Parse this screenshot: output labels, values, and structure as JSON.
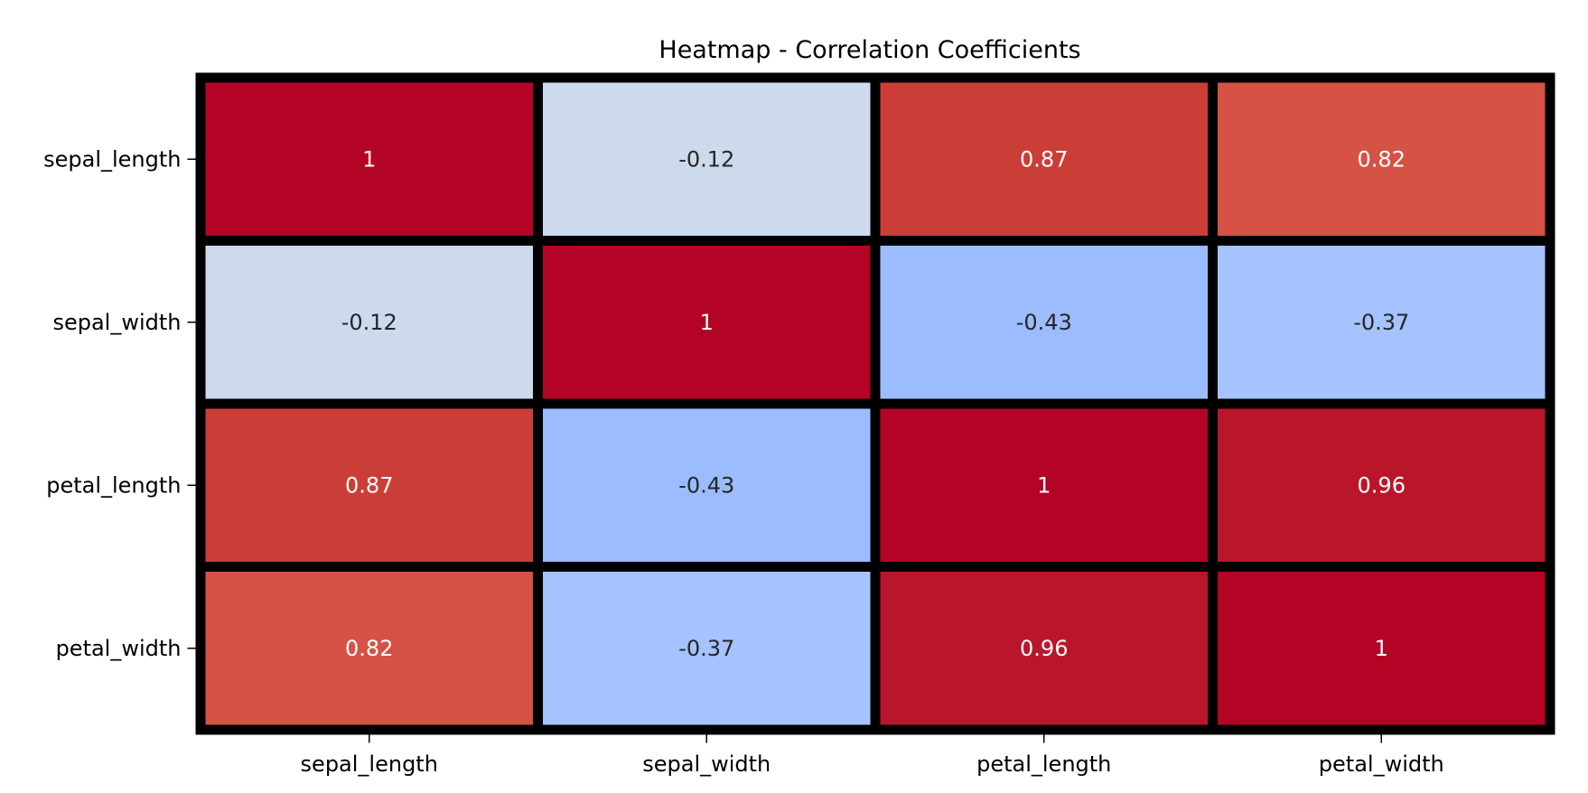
{
  "chart_data": {
    "type": "heatmap",
    "title": "Heatmap - Correlation Coefficients",
    "xlabel": "",
    "ylabel": "",
    "x_labels": [
      "sepal_length",
      "sepal_width",
      "petal_length",
      "petal_width"
    ],
    "y_labels": [
      "sepal_length",
      "sepal_width",
      "petal_length",
      "petal_width"
    ],
    "values": [
      [
        1,
        -0.12,
        0.87,
        0.82
      ],
      [
        -0.12,
        1,
        -0.43,
        -0.37
      ],
      [
        0.87,
        -0.43,
        1,
        0.96
      ],
      [
        0.82,
        -0.37,
        0.96,
        1
      ]
    ],
    "cell_labels": [
      [
        "1",
        "-0.12",
        "0.87",
        "0.82"
      ],
      [
        "-0.12",
        "1",
        "-0.43",
        "-0.37"
      ],
      [
        "0.87",
        "-0.43",
        "1",
        "0.96"
      ],
      [
        "0.82",
        "-0.37",
        "0.96",
        "1"
      ]
    ],
    "cell_colors": [
      [
        "#b40426",
        "#cdd9ec",
        "#cb3e38",
        "#d65244"
      ],
      [
        "#cdd9ec",
        "#b40426",
        "#9bbcff",
        "#a5c3fe"
      ],
      [
        "#cb3e38",
        "#9bbcff",
        "#b40426",
        "#ba162b"
      ],
      [
        "#d65244",
        "#a5c3fe",
        "#ba162b",
        "#b40426"
      ]
    ],
    "colormap": "coolwarm",
    "colorbar": false,
    "cell_border_color": "#000000",
    "light_text_color": "#ffffff",
    "dark_text_color": "#262626"
  }
}
